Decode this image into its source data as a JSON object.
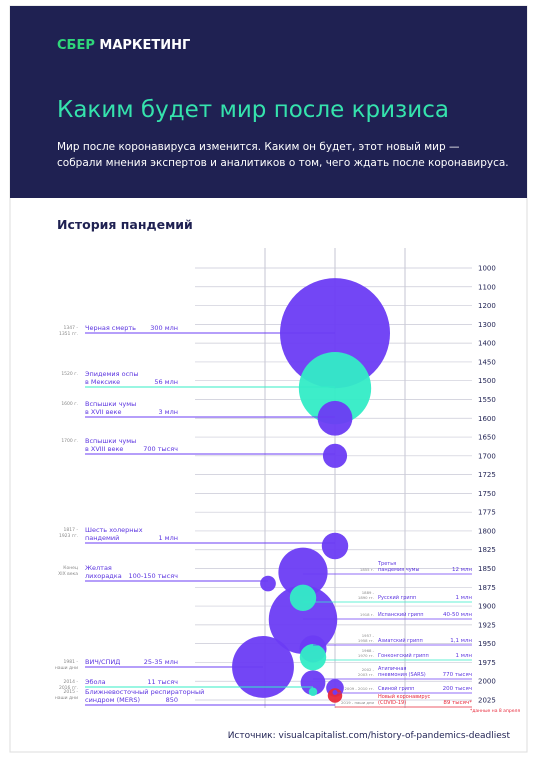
{
  "header": {
    "logo_first": "СБЕР",
    "logo_second": "МАРКЕТИНГ",
    "title": "Каким будет мир после кризиса",
    "subtitle": [
      "Мир после коронавируса изменится. Каким он будет, этот новый мир —",
      "собрали мнения экспертов и аналитиков о том, чего ждать после коронавируса."
    ]
  },
  "chart_data": {
    "type": "bubble",
    "title": "История пандемий",
    "yticks": [
      1000,
      1100,
      1200,
      1300,
      1400,
      1450,
      1500,
      1550,
      1600,
      1650,
      1700,
      1725,
      1750,
      1775,
      1800,
      1825,
      1850,
      1875,
      1900,
      1925,
      1950,
      1975,
      2000,
      2025
    ],
    "events": [
      {
        "date": [
          "1347 -",
          "1351 гг."
        ],
        "name": [
          "Черная смерть"
        ],
        "value": 300000000,
        "value_label": "300 млн",
        "year": 1347,
        "color": "#6b3cf4"
      },
      {
        "date": [
          "1520 г."
        ],
        "name": [
          "Эпидемия оспы",
          "в Мексике"
        ],
        "value": 56000000,
        "value_label": "56 млн",
        "year": 1520,
        "color": "#33ecc6"
      },
      {
        "date": [
          "1600 г."
        ],
        "name": [
          "Вспышки чумы",
          "в XVII веке"
        ],
        "value": 3000000,
        "value_label": "3 млн",
        "year": 1600,
        "color": "#6b3cf4"
      },
      {
        "date": [
          "1700 г."
        ],
        "name": [
          "Вспышки чумы",
          "в XVIII веке"
        ],
        "value": 700000,
        "value_label": "700 тысяч",
        "year": 1700,
        "color": "#6b3cf4"
      },
      {
        "date": [
          "1817 -",
          "1923 гг."
        ],
        "name": [
          "Шесть холерных",
          "пандемий"
        ],
        "value": 1000000,
        "value_label": "1 млн",
        "year": 1820,
        "color": "#6b3cf4"
      },
      {
        "date": [
          "Конец",
          "XIX века"
        ],
        "name": [
          "Желтая",
          "лихорадка"
        ],
        "value": 125000,
        "value_label": "100-150 тысяч",
        "year": 1870,
        "color": "#6b3cf4"
      },
      {
        "date": [
          "1981 -",
          "наши дни"
        ],
        "name": [
          "ВИЧ/СПИД"
        ],
        "value": 30000000,
        "value_label": "25-35 млн",
        "year": 1981,
        "color": "#6b3cf4"
      },
      {
        "date": [
          "2014 -",
          "2016 гг."
        ],
        "name": [
          "Эбола"
        ],
        "value": 11000,
        "value_label": "11 тысяч",
        "year": 2014,
        "color": "#33ecc6"
      },
      {
        "date": [
          "2015 -",
          "наши дни"
        ],
        "name": [
          "Ближневосточный респираторный",
          "синдром (MERS)"
        ],
        "value": 850,
        "value_label": "850",
        "year": 2015,
        "color": "#6b3cf4"
      },
      {
        "date": [
          "1855 г."
        ],
        "name": [
          "Третья",
          "пандемия чумы"
        ],
        "value": 12000000,
        "value_label": "12 млн",
        "year": 1855,
        "color": "#6b3cf4"
      },
      {
        "date": [
          "1889 -",
          "1890 гг."
        ],
        "name": [
          "Русский грипп"
        ],
        "value": 1000000,
        "value_label": "1 млн",
        "year": 1889,
        "color": "#33ecc6"
      },
      {
        "date": [
          "1918 г."
        ],
        "name": [
          "Испанский грипп"
        ],
        "value": 45000000,
        "value_label": "40-50 млн",
        "year": 1918,
        "color": "#6b3cf4"
      },
      {
        "date": [
          "1957 -",
          "1958 гг."
        ],
        "name": [
          "Азиатский грипп"
        ],
        "value": 1100000,
        "value_label": "1,1 млн",
        "year": 1957,
        "color": "#6b3cf4"
      },
      {
        "date": [
          "1968 -",
          "1970 гг."
        ],
        "name": [
          "Гонконгский грипп"
        ],
        "value": 1000000,
        "value_label": "1 млн",
        "year": 1968,
        "color": "#33ecc6"
      },
      {
        "date": [
          "2002 -",
          "2003 гг."
        ],
        "name": [
          "Атипичная",
          "пневмония (SARS)"
        ],
        "value": 770000,
        "value_label": "770 тысяч",
        "year": 2002,
        "color": "#6b3cf4"
      },
      {
        "date": [
          "2009 - 2010 гг."
        ],
        "name": [
          "Свиной грипп"
        ],
        "value": 200000,
        "value_label": "200 тысяч",
        "year": 2009,
        "color": "#6b3cf4"
      },
      {
        "date": [
          "2019 - наши дни"
        ],
        "name": [
          "Новый коронавирус",
          "(COVID-19)"
        ],
        "value": 89000,
        "value_label": "89 тысяч*",
        "year": 2019,
        "color": "#e8283a"
      }
    ],
    "footnote": "*данные на 8 апреля",
    "source": "Источник: visualcapitalist.com/history-of-pandemics-deadliest"
  }
}
